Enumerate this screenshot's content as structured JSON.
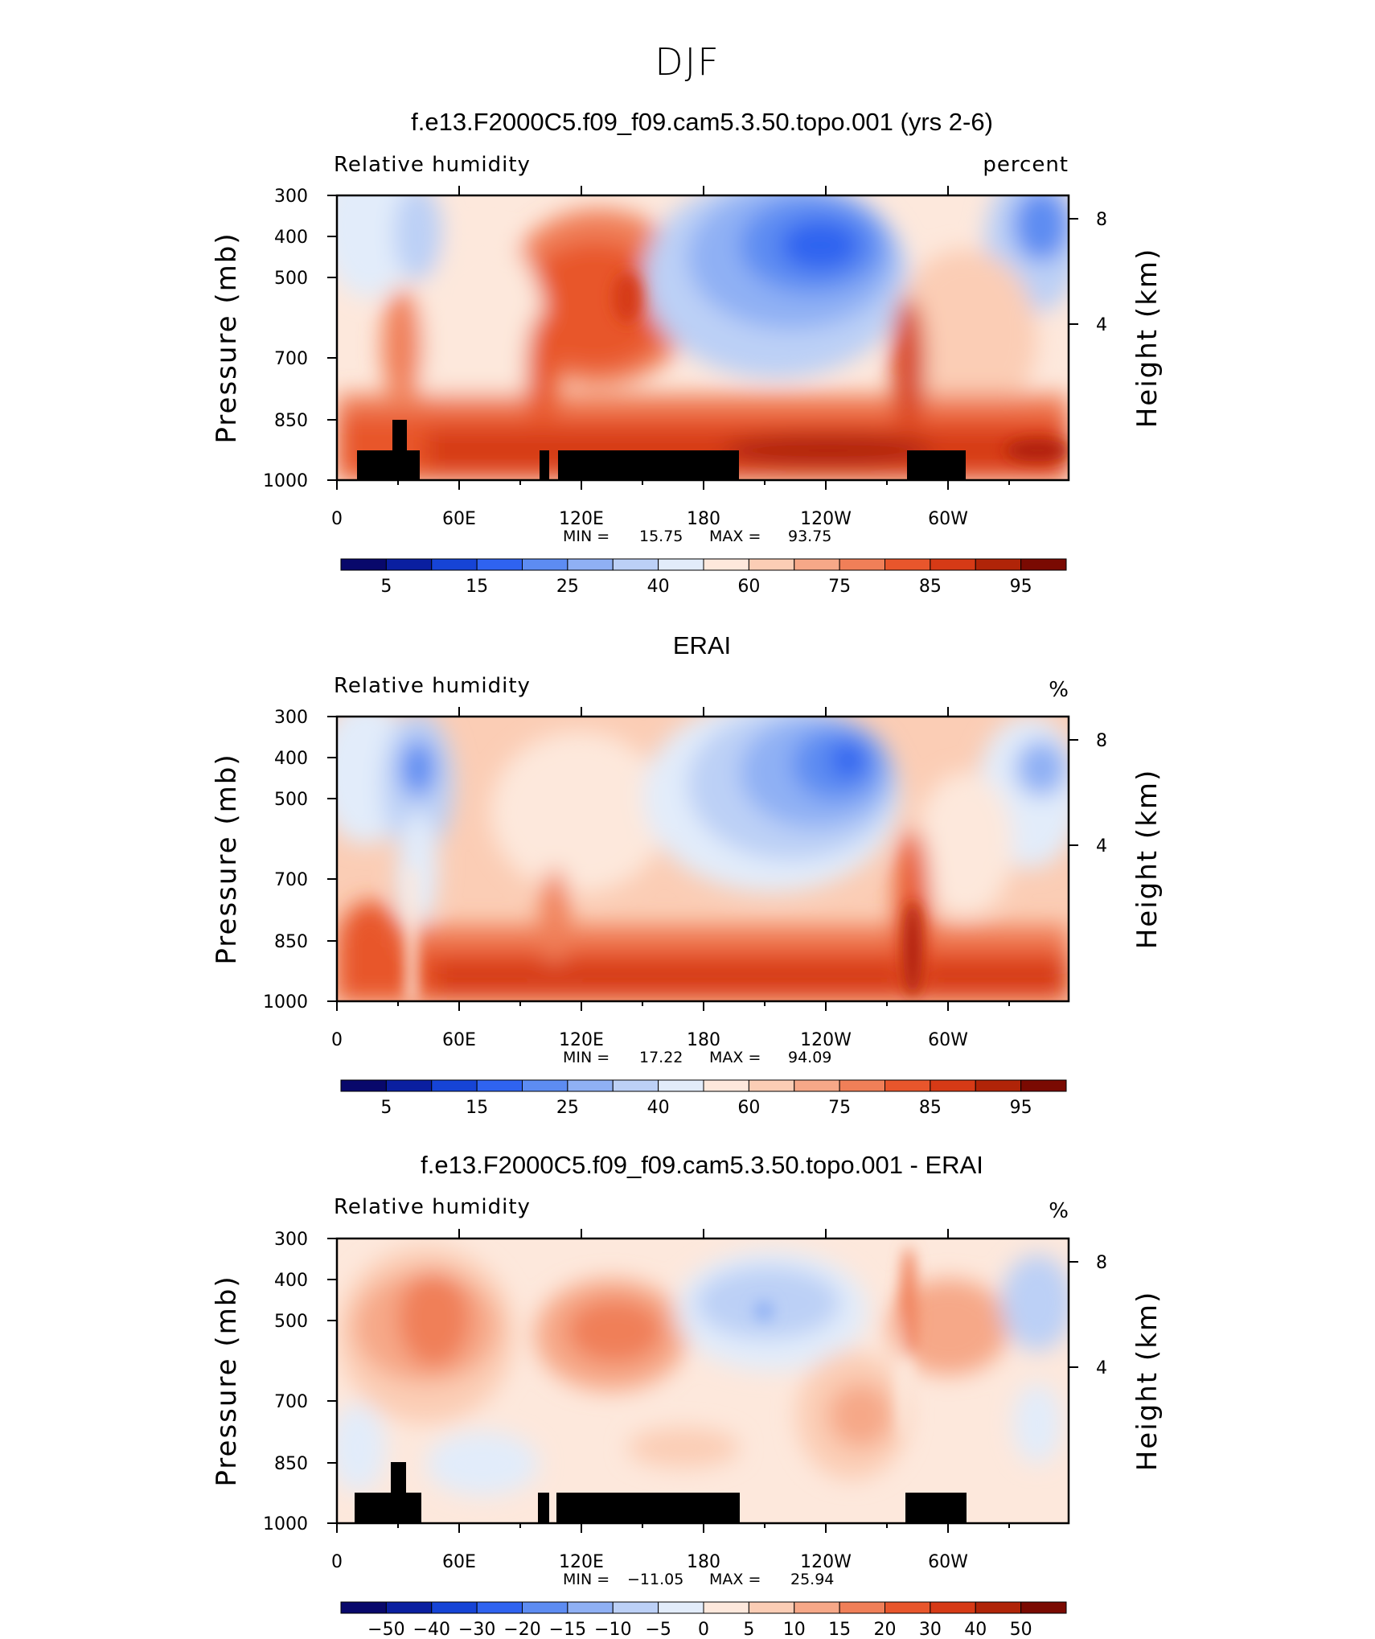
{
  "figure_title": "DJF",
  "chart_data": [
    {
      "type": "heatmap",
      "title": "f.e13.F2000C5.f09_f09.cam5.3.50.topo.001 (yrs 2-6)",
      "left_string": "Relative humidity",
      "right_string": "percent",
      "xlabel": "",
      "ylabel": "Pressure (mb)",
      "y2label": "Height (km)",
      "x_ticks": [
        "0",
        "60E",
        "120E",
        "180",
        "120W",
        "60W"
      ],
      "y_ticks": [
        "300",
        "400",
        "500",
        "700",
        "850",
        "1000"
      ],
      "y2_ticks": [
        "8",
        "4"
      ],
      "stats": {
        "min_label": "MIN =",
        "min": "15.75",
        "max_label": "MAX =",
        "max": "93.75"
      },
      "colorbar_labels": [
        "5",
        "15",
        "25",
        "40",
        "60",
        "75",
        "85",
        "95"
      ],
      "xlim": [
        0,
        360
      ],
      "ylim": [
        1000,
        300
      ],
      "field": "model",
      "topography": true,
      "value_range": [
        15.75,
        93.75
      ]
    },
    {
      "type": "heatmap",
      "title": "ERAI",
      "left_string": "Relative humidity",
      "right_string": "%",
      "xlabel": "",
      "ylabel": "Pressure (mb)",
      "y2label": "Height (km)",
      "x_ticks": [
        "0",
        "60E",
        "120E",
        "180",
        "120W",
        "60W"
      ],
      "y_ticks": [
        "300",
        "400",
        "500",
        "700",
        "850",
        "1000"
      ],
      "y2_ticks": [
        "8",
        "4"
      ],
      "stats": {
        "min_label": "MIN =",
        "min": "17.22",
        "max_label": "MAX =",
        "max": "94.09"
      },
      "colorbar_labels": [
        "5",
        "15",
        "25",
        "40",
        "60",
        "75",
        "85",
        "95"
      ],
      "xlim": [
        0,
        360
      ],
      "ylim": [
        1000,
        300
      ],
      "field": "obs",
      "topography": false,
      "value_range": [
        17.22,
        94.09
      ]
    },
    {
      "type": "heatmap",
      "title": "f.e13.F2000C5.f09_f09.cam5.3.50.topo.001 - ERAI",
      "left_string": "Relative humidity",
      "right_string": "%",
      "xlabel": "",
      "ylabel": "Pressure (mb)",
      "y2label": "Height (km)",
      "x_ticks": [
        "0",
        "60E",
        "120E",
        "180",
        "120W",
        "60W"
      ],
      "y_ticks": [
        "300",
        "400",
        "500",
        "700",
        "850",
        "1000"
      ],
      "y2_ticks": [
        "8",
        "4"
      ],
      "stats": {
        "min_label": "MIN =",
        "min": "−11.05",
        "max_label": "MAX =",
        "max": "25.94"
      },
      "colorbar_labels": [
        "−50",
        "−40",
        "−30",
        "−20",
        "−15",
        "−10",
        "−5",
        "0",
        "5",
        "10",
        "15",
        "20",
        "30",
        "40",
        "50"
      ],
      "xlim": [
        0,
        360
      ],
      "ylim": [
        1000,
        300
      ],
      "field": "diff",
      "topography": true,
      "value_range": [
        -11.05,
        25.94
      ]
    }
  ],
  "colormap": [
    "#08086b",
    "#0a1fa0",
    "#1644d6",
    "#2f63f0",
    "#5d8cf2",
    "#8fb0f4",
    "#bcd0f6",
    "#e2ecfa",
    "#fde8dc",
    "#fbcdb5",
    "#f6a888",
    "#f07f58",
    "#e8562c",
    "#d63a16",
    "#b02408",
    "#7a0a02"
  ],
  "topography_color": "#000000"
}
